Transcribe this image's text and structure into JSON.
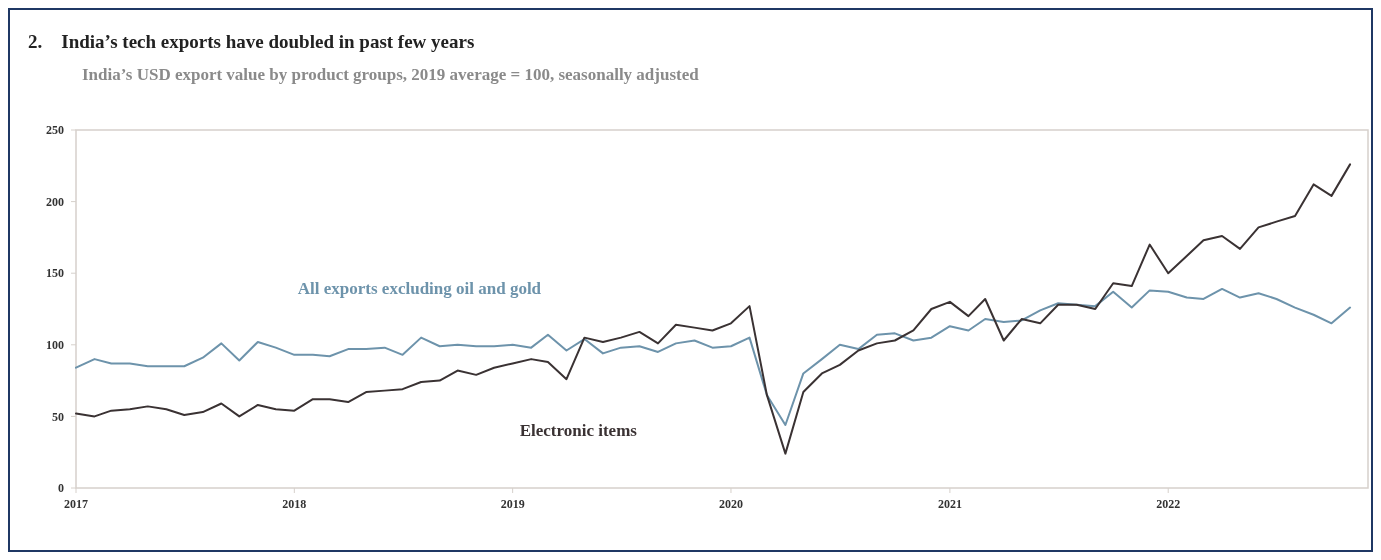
{
  "chart_data": {
    "type": "line",
    "title": "2.    India’s tech exports have doubled in past few years",
    "subtitle": "India’s USD export value by product groups, 2019 average = 100, seasonally adjusted",
    "x": [
      "2017-01",
      "2017-02",
      "2017-03",
      "2017-04",
      "2017-05",
      "2017-06",
      "2017-07",
      "2017-08",
      "2017-09",
      "2017-10",
      "2017-11",
      "2017-12",
      "2018-01",
      "2018-02",
      "2018-03",
      "2018-04",
      "2018-05",
      "2018-06",
      "2018-07",
      "2018-08",
      "2018-09",
      "2018-10",
      "2018-11",
      "2018-12",
      "2019-01",
      "2019-02",
      "2019-03",
      "2019-04",
      "2019-05",
      "2019-06",
      "2019-07",
      "2019-08",
      "2019-09",
      "2019-10",
      "2019-11",
      "2019-12",
      "2020-01",
      "2020-02",
      "2020-03",
      "2020-04",
      "2020-05",
      "2020-06",
      "2020-07",
      "2020-08",
      "2020-09",
      "2020-10",
      "2020-11",
      "2020-12",
      "2021-01",
      "2021-02",
      "2021-03",
      "2021-04",
      "2021-05",
      "2021-06",
      "2021-07",
      "2021-08",
      "2021-09",
      "2021-10",
      "2021-11",
      "2021-12",
      "2022-01",
      "2022-02",
      "2022-03",
      "2022-04",
      "2022-05",
      "2022-06",
      "2022-07",
      "2022-08",
      "2022-09",
      "2022-10",
      "2022-11"
    ],
    "series": [
      {
        "name": "All exports excluding oil and gold",
        "color": "#6d93ab",
        "values": [
          84,
          90,
          87,
          87,
          85,
          85,
          85,
          91,
          101,
          89,
          102,
          98,
          93,
          93,
          92,
          97,
          97,
          98,
          93,
          105,
          99,
          100,
          99,
          99,
          100,
          98,
          107,
          96,
          104,
          94,
          98,
          99,
          95,
          101,
          103,
          98,
          99,
          105,
          65,
          44,
          80,
          90,
          100,
          97,
          107,
          108,
          103,
          105,
          113,
          110,
          118,
          116,
          117,
          124,
          129,
          128,
          127,
          137,
          126,
          138,
          137,
          133,
          132,
          139,
          133,
          136,
          132,
          126,
          121,
          115,
          126
        ]
      },
      {
        "name": "Electronic items",
        "color": "#3a3233",
        "values": [
          52,
          50,
          54,
          55,
          57,
          55,
          51,
          53,
          59,
          50,
          58,
          55,
          54,
          62,
          62,
          60,
          67,
          68,
          69,
          74,
          75,
          82,
          79,
          84,
          87,
          90,
          88,
          76,
          105,
          102,
          105,
          109,
          101,
          114,
          112,
          110,
          115,
          127,
          65,
          24,
          67,
          80,
          86,
          96,
          101,
          103,
          110,
          125,
          130,
          120,
          132,
          103,
          118,
          115,
          128,
          128,
          125,
          143,
          141,
          170,
          150,
          162,
          173,
          176,
          167,
          182,
          186,
          190,
          212,
          204,
          226
        ]
      }
    ],
    "xlim": [
      "2017-01",
      "2022-12"
    ],
    "xticks": [
      {
        "value": "2017-01",
        "label": "2017"
      },
      {
        "value": "2018-01",
        "label": "2018"
      },
      {
        "value": "2019-01",
        "label": "2019"
      },
      {
        "value": "2020-01",
        "label": "2020"
      },
      {
        "value": "2021-01",
        "label": "2021"
      },
      {
        "value": "2022-01",
        "label": "2022"
      }
    ],
    "ylim": [
      0,
      250
    ],
    "yticks": [
      0,
      50,
      100,
      150,
      200,
      250
    ],
    "grid": false,
    "legend": false,
    "marker": "none",
    "line_style": "solid"
  }
}
